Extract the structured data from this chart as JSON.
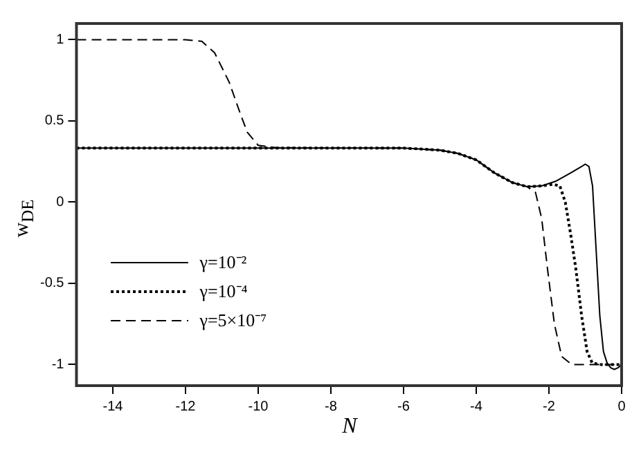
{
  "chart_data": {
    "type": "line",
    "xlabel": "N",
    "ylabel": "w$_{DE}$",
    "xlim": [
      -15,
      0
    ],
    "ylim": [
      -1.13,
      1.1
    ],
    "xticks": [
      -14,
      -12,
      -10,
      -8,
      -6,
      -4,
      -2,
      0
    ],
    "yticks": [
      -1,
      -0.5,
      0,
      0.5,
      1
    ],
    "grid": false,
    "legend": "bottom left",
    "marker": "none",
    "series": [
      {
        "name": "γ=10⁻²",
        "color": "#000000",
        "line_style": "solid",
        "x": [
          -15,
          -6,
          -5,
          -4.5,
          -4,
          -3.5,
          -3,
          -2.6,
          -2.2,
          -1.8,
          -1.4,
          -1.1,
          -1.0,
          -0.9,
          -0.8,
          -0.7,
          -0.6,
          -0.5,
          -0.4,
          -0.3,
          -0.2,
          -0.1,
          0
        ],
        "values": [
          0.333,
          0.333,
          0.32,
          0.3,
          0.26,
          0.18,
          0.12,
          0.095,
          0.1,
          0.13,
          0.18,
          0.22,
          0.234,
          0.22,
          0.1,
          -0.3,
          -0.7,
          -0.92,
          -0.99,
          -1.02,
          -1.03,
          -1.02,
          -1.0
        ]
      },
      {
        "name": "γ=10⁻⁴",
        "color": "#000000",
        "line_style": "dotted",
        "x": [
          -15,
          -6,
          -5,
          -4.5,
          -4,
          -3.5,
          -3,
          -2.6,
          -2.2,
          -1.9,
          -1.7,
          -1.55,
          -1.4,
          -1.26,
          -1.1,
          -0.95,
          -0.81,
          -0.6,
          0
        ],
        "values": [
          0.333,
          0.333,
          0.32,
          0.3,
          0.26,
          0.18,
          0.12,
          0.095,
          0.1,
          0.11,
          0.1,
          0.0,
          -0.2,
          -0.41,
          -0.7,
          -0.92,
          -0.99,
          -1.0,
          -1.0
        ]
      },
      {
        "name": "γ=5×10⁻⁷",
        "color": "#000000",
        "line_style": "dashed",
        "x": [
          -15,
          -12,
          -11.55,
          -11.2,
          -10.8,
          -10.5,
          -10.3,
          -10,
          -9.5,
          -6,
          -5,
          -4.5,
          -4,
          -3.5,
          -3,
          -2.6,
          -2.37,
          -2.2,
          -2.04,
          -1.85,
          -1.65,
          -1.37,
          -1,
          0
        ],
        "values": [
          1.0,
          1.0,
          0.99,
          0.92,
          0.74,
          0.55,
          0.43,
          0.35,
          0.335,
          0.333,
          0.32,
          0.3,
          0.26,
          0.18,
          0.12,
          0.095,
          0.06,
          -0.1,
          -0.41,
          -0.75,
          -0.95,
          -1.0,
          -1.0,
          -1.0
        ]
      }
    ]
  }
}
